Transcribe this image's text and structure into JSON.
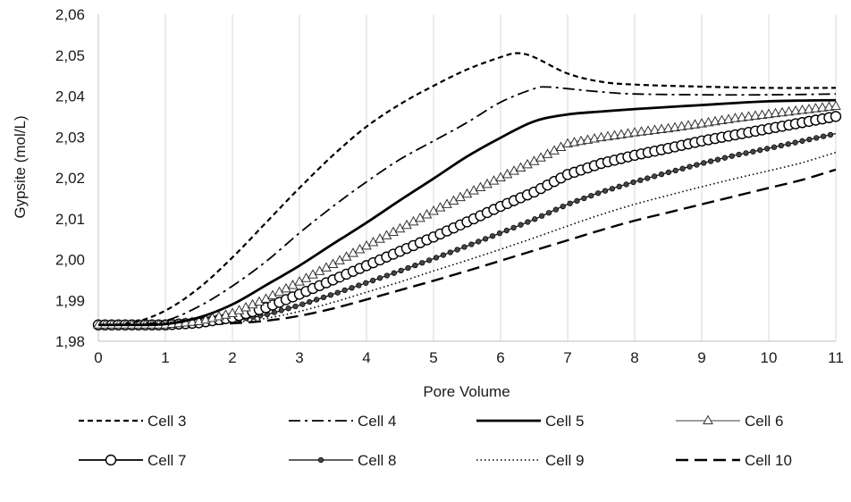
{
  "chart_data": {
    "type": "line",
    "title": "",
    "xlabel": "Pore Volume",
    "ylabel": "Gypsite (mol/L)",
    "xlim": [
      0,
      11
    ],
    "ylim": [
      1.98,
      2.06
    ],
    "x_ticks": [
      "0",
      "1",
      "2",
      "3",
      "4",
      "5",
      "6",
      "7",
      "8",
      "9",
      "10",
      "11"
    ],
    "y_ticks": [
      "1,98",
      "1,99",
      "2,00",
      "2,01",
      "2,02",
      "2,03",
      "2,04",
      "2,05",
      "2,06"
    ],
    "grid": "vertical",
    "legend_position": "bottom",
    "series": [
      {
        "name": "Cell 3",
        "style": "short-dash",
        "marker": "none",
        "x": [
          0,
          0.5,
          1,
          1.5,
          2,
          2.5,
          3,
          3.5,
          4,
          4.5,
          5,
          5.5,
          6,
          6.25,
          6.5,
          7,
          7.5,
          8,
          9,
          10,
          11
        ],
        "y": [
          1.984,
          1.9845,
          1.9875,
          1.993,
          2.0005,
          2.009,
          2.0175,
          2.0255,
          2.0325,
          2.038,
          2.0425,
          2.0465,
          2.0495,
          2.0505,
          2.0495,
          2.0455,
          2.0435,
          2.0428,
          2.0423,
          2.042,
          2.042
        ]
      },
      {
        "name": "Cell 4",
        "style": "dash-dot",
        "marker": "none",
        "x": [
          0,
          0.5,
          1,
          1.5,
          2,
          2.5,
          3,
          3.5,
          4,
          4.5,
          5,
          5.5,
          6,
          6.5,
          6.7,
          7,
          7.5,
          8,
          9,
          10,
          11
        ],
        "y": [
          1.984,
          1.984,
          1.985,
          1.9885,
          1.9935,
          1.9995,
          2.0065,
          2.013,
          2.019,
          2.0245,
          2.029,
          2.0335,
          2.0385,
          2.0418,
          2.0422,
          2.0418,
          2.041,
          2.0405,
          2.0403,
          2.0403,
          2.0405
        ]
      },
      {
        "name": "Cell 5",
        "style": "solid-thick",
        "marker": "none",
        "x": [
          0,
          0.5,
          1,
          1.5,
          2,
          2.5,
          3,
          3.5,
          4,
          4.5,
          5,
          5.5,
          6,
          6.5,
          7,
          7.5,
          8,
          9,
          10,
          11
        ],
        "y": [
          1.984,
          1.984,
          1.9842,
          1.9858,
          1.989,
          1.9937,
          1.9985,
          2.0038,
          2.009,
          2.0145,
          2.0198,
          2.0252,
          2.0298,
          2.0338,
          2.0355,
          2.0362,
          2.0368,
          2.0378,
          2.0387,
          2.039
        ]
      },
      {
        "name": "Cell 6",
        "style": "solid-gray",
        "marker": "triangle",
        "x": [
          0,
          0.5,
          1,
          1.5,
          2,
          2.5,
          3,
          3.5,
          4,
          4.5,
          5,
          5.5,
          6,
          6.5,
          7,
          7.5,
          8,
          8.5,
          9,
          9.5,
          10,
          10.5,
          11
        ],
        "y": [
          1.984,
          1.984,
          1.984,
          1.9848,
          1.9868,
          1.9903,
          1.9945,
          1.9988,
          2.0033,
          2.0075,
          2.0118,
          2.016,
          2.02,
          2.024,
          2.0283,
          2.0298,
          2.031,
          2.032,
          2.0332,
          2.0345,
          2.0355,
          2.0365,
          2.0375
        ]
      },
      {
        "name": "Cell 7",
        "style": "solid",
        "marker": "circle",
        "x": [
          0,
          0.5,
          1,
          1.5,
          2,
          2.5,
          3,
          3.5,
          4,
          4.5,
          5,
          5.5,
          6,
          6.5,
          7,
          7.5,
          8,
          8.5,
          9,
          9.5,
          10,
          10.5,
          11
        ],
        "y": [
          1.984,
          1.984,
          1.984,
          1.9845,
          1.9858,
          1.9882,
          1.9915,
          1.995,
          1.9985,
          2.002,
          2.0055,
          2.0092,
          2.013,
          2.0165,
          2.0208,
          2.0235,
          2.0255,
          2.0272,
          2.029,
          2.0305,
          2.032,
          2.0335,
          2.035
        ]
      },
      {
        "name": "Cell 8",
        "style": "solid-thin",
        "marker": "dot",
        "x": [
          0,
          0.5,
          1,
          1.5,
          2,
          2.5,
          3,
          3.5,
          4,
          4.5,
          5,
          5.5,
          6,
          6.5,
          7,
          7.5,
          8,
          8.5,
          9,
          9.5,
          10,
          10.5,
          11
        ],
        "y": [
          1.984,
          1.984,
          1.984,
          1.9843,
          1.985,
          1.9865,
          1.9888,
          1.9915,
          1.9943,
          1.9972,
          2.0002,
          2.0033,
          2.0065,
          2.0098,
          2.0135,
          2.0165,
          2.019,
          2.0213,
          2.0235,
          2.0255,
          2.0272,
          2.029,
          2.0308
        ]
      },
      {
        "name": "Cell 9",
        "style": "dotted",
        "marker": "none",
        "x": [
          0,
          0.5,
          1,
          1.5,
          2,
          2.5,
          3,
          3.5,
          4,
          4.5,
          5,
          5.5,
          6,
          6.5,
          7,
          7.5,
          8,
          8.5,
          9,
          9.5,
          10,
          10.5,
          11
        ],
        "y": [
          1.984,
          1.984,
          1.984,
          1.9842,
          1.9846,
          1.9856,
          1.9873,
          1.9895,
          1.992,
          1.9945,
          1.9972,
          1.9998,
          2.0025,
          2.0053,
          2.0082,
          2.011,
          2.0135,
          2.0157,
          2.0178,
          2.0198,
          2.0217,
          2.0237,
          2.0262
        ]
      },
      {
        "name": "Cell 10",
        "style": "long-dash",
        "marker": "none",
        "x": [
          0,
          0.5,
          1,
          1.5,
          2,
          2.5,
          3,
          3.5,
          4,
          4.5,
          5,
          5.5,
          6,
          6.5,
          7,
          7.5,
          8,
          8.5,
          9,
          9.5,
          10,
          10.5,
          11
        ],
        "y": [
          1.984,
          1.984,
          1.984,
          1.9841,
          1.9844,
          1.985,
          1.9862,
          1.988,
          1.9902,
          1.9925,
          1.9948,
          1.9972,
          1.9997,
          2.0022,
          2.0047,
          2.0072,
          2.0095,
          2.0115,
          2.0135,
          2.0155,
          2.0175,
          2.0195,
          2.022
        ]
      }
    ],
    "colors": {
      "text": "#1a1a1a",
      "line": "#000000",
      "grid": "#d9d9d9",
      "cell6": "#7f7f7f"
    }
  }
}
